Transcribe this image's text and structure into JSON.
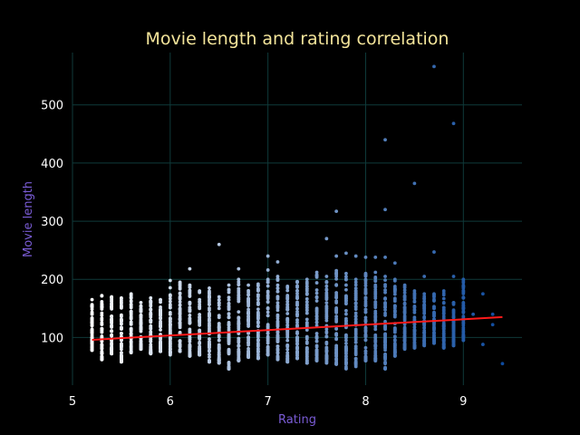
{
  "chart_data": {
    "type": "scatter",
    "title": "Movie length and rating correlation",
    "xlabel": "Rating",
    "ylabel": "Movie length",
    "xlim": [
      5.0,
      9.6
    ],
    "ylim": [
      18,
      590
    ],
    "xticks": [
      5,
      6,
      7,
      8,
      9
    ],
    "yticks": [
      100,
      200,
      300,
      400,
      500
    ],
    "grid": true,
    "legend": "none",
    "colors": {
      "background": "#000000",
      "grid": "#0f3a3a",
      "title": "#f3e49a",
      "axis_label": "#7a5cd6",
      "tick": "#ffffff",
      "trend": "#ff1a1a",
      "point_low": "#ffffff",
      "point_high": "#0d4a9e"
    },
    "trend_line": {
      "x": [
        5.2,
        9.4
      ],
      "y": [
        96,
        135
      ]
    },
    "columns": [
      {
        "x": 5.2,
        "min": 78,
        "max": 165
      },
      {
        "x": 5.3,
        "min": 62,
        "max": 172
      },
      {
        "x": 5.4,
        "min": 72,
        "max": 170
      },
      {
        "x": 5.5,
        "min": 58,
        "max": 168
      },
      {
        "x": 5.6,
        "min": 74,
        "max": 175
      },
      {
        "x": 5.7,
        "min": 80,
        "max": 160
      },
      {
        "x": 5.8,
        "min": 72,
        "max": 168
      },
      {
        "x": 5.9,
        "min": 76,
        "max": 165
      },
      {
        "x": 6.0,
        "min": 70,
        "max": 198
      },
      {
        "x": 6.1,
        "min": 76,
        "max": 195
      },
      {
        "x": 6.2,
        "min": 68,
        "max": 190
      },
      {
        "x": 6.3,
        "min": 70,
        "max": 180
      },
      {
        "x": 6.4,
        "min": 58,
        "max": 185
      },
      {
        "x": 6.5,
        "min": 56,
        "max": 170
      },
      {
        "x": 6.6,
        "min": 46,
        "max": 190
      },
      {
        "x": 6.7,
        "min": 60,
        "max": 200
      },
      {
        "x": 6.8,
        "min": 66,
        "max": 190
      },
      {
        "x": 6.9,
        "min": 64,
        "max": 192
      },
      {
        "x": 7.0,
        "min": 70,
        "max": 200
      },
      {
        "x": 7.1,
        "min": 62,
        "max": 205
      },
      {
        "x": 7.2,
        "min": 58,
        "max": 188
      },
      {
        "x": 7.3,
        "min": 64,
        "max": 196
      },
      {
        "x": 7.4,
        "min": 56,
        "max": 200
      },
      {
        "x": 7.5,
        "min": 60,
        "max": 212
      },
      {
        "x": 7.6,
        "min": 56,
        "max": 205
      },
      {
        "x": 7.7,
        "min": 54,
        "max": 215
      },
      {
        "x": 7.8,
        "min": 46,
        "max": 210
      },
      {
        "x": 7.9,
        "min": 50,
        "max": 200
      },
      {
        "x": 8.0,
        "min": 60,
        "max": 210
      },
      {
        "x": 8.1,
        "min": 60,
        "max": 212
      },
      {
        "x": 8.2,
        "min": 46,
        "max": 205
      },
      {
        "x": 8.3,
        "min": 68,
        "max": 200
      },
      {
        "x": 8.4,
        "min": 80,
        "max": 190
      },
      {
        "x": 8.5,
        "min": 82,
        "max": 180
      },
      {
        "x": 8.6,
        "min": 86,
        "max": 175
      },
      {
        "x": 8.7,
        "min": 90,
        "max": 175
      },
      {
        "x": 8.8,
        "min": 82,
        "max": 180
      },
      {
        "x": 8.9,
        "min": 86,
        "max": 160
      },
      {
        "x": 9.0,
        "min": 95,
        "max": 200
      }
    ],
    "outliers": [
      {
        "x": 6.2,
        "y": 218
      },
      {
        "x": 6.5,
        "y": 260
      },
      {
        "x": 6.7,
        "y": 218
      },
      {
        "x": 7.0,
        "y": 240
      },
      {
        "x": 7.0,
        "y": 216
      },
      {
        "x": 7.1,
        "y": 230
      },
      {
        "x": 7.6,
        "y": 270
      },
      {
        "x": 7.7,
        "y": 317
      },
      {
        "x": 7.7,
        "y": 240
      },
      {
        "x": 7.8,
        "y": 245
      },
      {
        "x": 7.9,
        "y": 240
      },
      {
        "x": 8.0,
        "y": 238
      },
      {
        "x": 8.1,
        "y": 238
      },
      {
        "x": 8.2,
        "y": 440
      },
      {
        "x": 8.2,
        "y": 320
      },
      {
        "x": 8.2,
        "y": 238
      },
      {
        "x": 8.3,
        "y": 228
      },
      {
        "x": 8.5,
        "y": 365
      },
      {
        "x": 8.6,
        "y": 205
      },
      {
        "x": 8.7,
        "y": 566
      },
      {
        "x": 8.7,
        "y": 247
      },
      {
        "x": 8.9,
        "y": 468
      },
      {
        "x": 8.9,
        "y": 205
      },
      {
        "x": 9.1,
        "y": 140
      },
      {
        "x": 9.2,
        "y": 175
      },
      {
        "x": 9.2,
        "y": 88
      },
      {
        "x": 9.3,
        "y": 140
      },
      {
        "x": 9.3,
        "y": 122
      },
      {
        "x": 9.4,
        "y": 55
      }
    ]
  }
}
